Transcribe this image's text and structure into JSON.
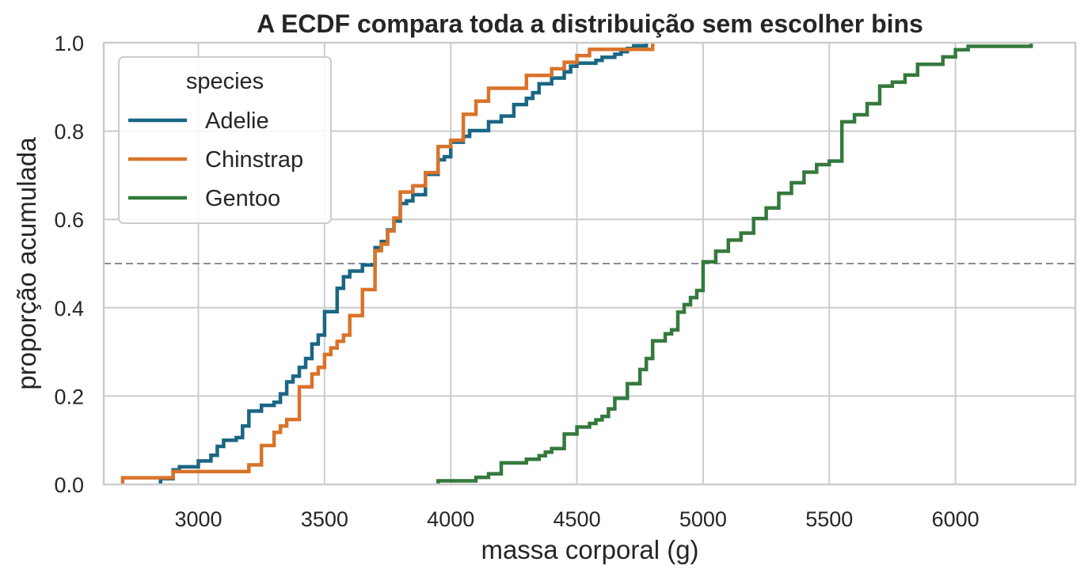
{
  "chart_data": {
    "type": "line",
    "title": "A ECDF compara toda a distribuição sem escolher bins",
    "xlabel": "massa corporal (g)",
    "ylabel": "proporção acumulada",
    "xlim": [
      2625,
      6475
    ],
    "ylim": [
      0,
      1
    ],
    "xticks": [
      3000,
      3500,
      4000,
      4500,
      5000,
      5500,
      6000
    ],
    "xtick_labels": [
      "3000",
      "3500",
      "4000",
      "4500",
      "5000",
      "5500",
      "6000"
    ],
    "yticks": [
      0,
      0.2,
      0.4,
      0.6,
      0.8,
      1
    ],
    "ytick_labels": [
      "0.0",
      "0.2",
      "0.4",
      "0.6",
      "0.8",
      "1.0"
    ],
    "grid": true,
    "legend": {
      "title": "species",
      "placement": "top-left"
    },
    "reference_line": {
      "y": 0.5,
      "style": "dashed",
      "color": "#8c8c96"
    },
    "series": [
      {
        "name": "Adelie",
        "color": "#1a6684",
        "points": [
          [
            2850,
            0.013
          ],
          [
            2900,
            0.033
          ],
          [
            2925,
            0.04
          ],
          [
            3000,
            0.053
          ],
          [
            3050,
            0.066
          ],
          [
            3075,
            0.086
          ],
          [
            3100,
            0.1
          ],
          [
            3150,
            0.106
          ],
          [
            3175,
            0.132
          ],
          [
            3200,
            0.166
          ],
          [
            3250,
            0.179
          ],
          [
            3300,
            0.186
          ],
          [
            3325,
            0.205
          ],
          [
            3350,
            0.232
          ],
          [
            3375,
            0.245
          ],
          [
            3400,
            0.265
          ],
          [
            3425,
            0.285
          ],
          [
            3450,
            0.318
          ],
          [
            3475,
            0.338
          ],
          [
            3500,
            0.391
          ],
          [
            3550,
            0.444
          ],
          [
            3575,
            0.47
          ],
          [
            3600,
            0.483
          ],
          [
            3650,
            0.497
          ],
          [
            3700,
            0.536
          ],
          [
            3725,
            0.55
          ],
          [
            3750,
            0.576
          ],
          [
            3775,
            0.596
          ],
          [
            3800,
            0.636
          ],
          [
            3825,
            0.642
          ],
          [
            3850,
            0.656
          ],
          [
            3900,
            0.702
          ],
          [
            3950,
            0.735
          ],
          [
            3975,
            0.742
          ],
          [
            4000,
            0.775
          ],
          [
            4050,
            0.788
          ],
          [
            4075,
            0.801
          ],
          [
            4150,
            0.821
          ],
          [
            4200,
            0.834
          ],
          [
            4250,
            0.86
          ],
          [
            4300,
            0.874
          ],
          [
            4325,
            0.887
          ],
          [
            4350,
            0.907
          ],
          [
            4400,
            0.92
          ],
          [
            4450,
            0.934
          ],
          [
            4475,
            0.947
          ],
          [
            4500,
            0.954
          ],
          [
            4575,
            0.96
          ],
          [
            4600,
            0.967
          ],
          [
            4650,
            0.974
          ],
          [
            4675,
            0.98
          ],
          [
            4700,
            0.987
          ],
          [
            4725,
            0.993
          ],
          [
            4775,
            1.0
          ]
        ]
      },
      {
        "name": "Chinstrap",
        "color": "#d9732a",
        "points": [
          [
            2700,
            0.015
          ],
          [
            2900,
            0.029
          ],
          [
            3200,
            0.044
          ],
          [
            3250,
            0.088
          ],
          [
            3300,
            0.118
          ],
          [
            3325,
            0.132
          ],
          [
            3350,
            0.147
          ],
          [
            3400,
            0.221
          ],
          [
            3450,
            0.25
          ],
          [
            3475,
            0.265
          ],
          [
            3500,
            0.294
          ],
          [
            3525,
            0.309
          ],
          [
            3550,
            0.324
          ],
          [
            3575,
            0.338
          ],
          [
            3600,
            0.382
          ],
          [
            3650,
            0.441
          ],
          [
            3700,
            0.529
          ],
          [
            3725,
            0.544
          ],
          [
            3750,
            0.574
          ],
          [
            3775,
            0.603
          ],
          [
            3800,
            0.662
          ],
          [
            3850,
            0.676
          ],
          [
            3900,
            0.706
          ],
          [
            3950,
            0.765
          ],
          [
            4000,
            0.779
          ],
          [
            4050,
            0.838
          ],
          [
            4100,
            0.868
          ],
          [
            4150,
            0.897
          ],
          [
            4300,
            0.926
          ],
          [
            4400,
            0.941
          ],
          [
            4450,
            0.956
          ],
          [
            4500,
            0.971
          ],
          [
            4550,
            0.985
          ],
          [
            4800,
            1.0
          ]
        ]
      },
      {
        "name": "Gentoo",
        "color": "#35793d",
        "points": [
          [
            3950,
            0.008
          ],
          [
            4100,
            0.016
          ],
          [
            4150,
            0.024
          ],
          [
            4200,
            0.049
          ],
          [
            4300,
            0.057
          ],
          [
            4350,
            0.065
          ],
          [
            4375,
            0.073
          ],
          [
            4400,
            0.081
          ],
          [
            4450,
            0.114
          ],
          [
            4500,
            0.13
          ],
          [
            4550,
            0.138
          ],
          [
            4575,
            0.146
          ],
          [
            4600,
            0.154
          ],
          [
            4625,
            0.171
          ],
          [
            4650,
            0.195
          ],
          [
            4700,
            0.228
          ],
          [
            4750,
            0.26
          ],
          [
            4775,
            0.285
          ],
          [
            4800,
            0.325
          ],
          [
            4850,
            0.341
          ],
          [
            4875,
            0.35
          ],
          [
            4900,
            0.39
          ],
          [
            4925,
            0.407
          ],
          [
            4950,
            0.423
          ],
          [
            4975,
            0.439
          ],
          [
            5000,
            0.504
          ],
          [
            5050,
            0.528
          ],
          [
            5100,
            0.553
          ],
          [
            5150,
            0.569
          ],
          [
            5200,
            0.602
          ],
          [
            5250,
            0.626
          ],
          [
            5300,
            0.659
          ],
          [
            5350,
            0.683
          ],
          [
            5400,
            0.707
          ],
          [
            5450,
            0.724
          ],
          [
            5500,
            0.732
          ],
          [
            5550,
            0.821
          ],
          [
            5600,
            0.837
          ],
          [
            5650,
            0.862
          ],
          [
            5700,
            0.902
          ],
          [
            5750,
            0.911
          ],
          [
            5800,
            0.927
          ],
          [
            5850,
            0.951
          ],
          [
            5950,
            0.968
          ],
          [
            6000,
            0.984
          ],
          [
            6050,
            0.992
          ],
          [
            6300,
            1.0
          ]
        ]
      }
    ]
  }
}
